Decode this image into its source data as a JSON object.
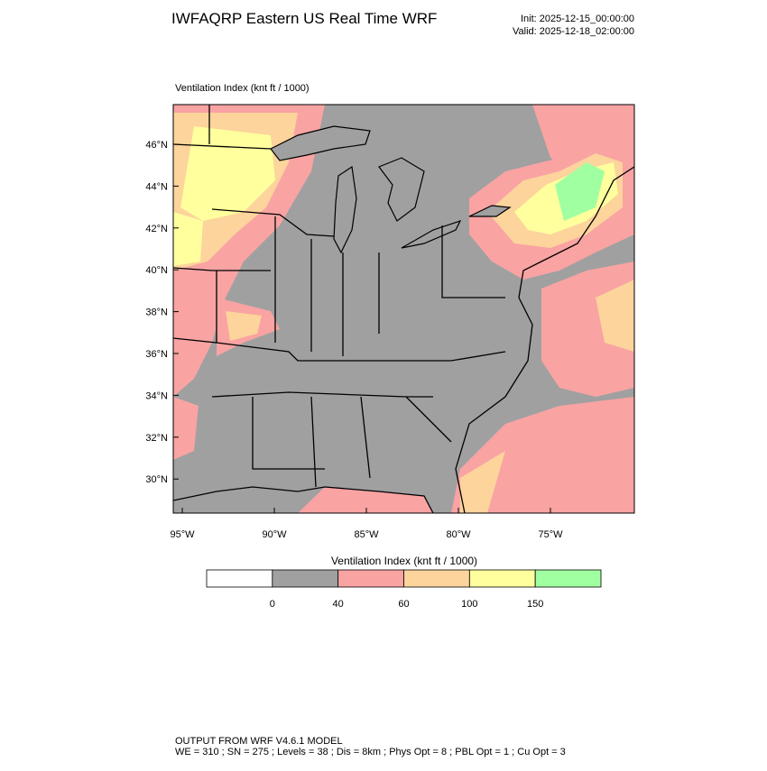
{
  "header": {
    "title": "IWFAQRP Eastern US Real Time WRF",
    "init": "Init: 2025-12-15_00:00:00",
    "valid": "Valid: 2025-12-18_02:00:00"
  },
  "map": {
    "subtitle": "Ventilation Index   (knt ft / 1000)",
    "lat_labels": [
      "46°N",
      "44°N",
      "42°N",
      "40°N",
      "38°N",
      "36°N",
      "34°N",
      "32°N",
      "30°N"
    ],
    "lon_labels": [
      "95°W",
      "90°W",
      "85°W",
      "80°W",
      "75°W"
    ]
  },
  "colorbar": {
    "title": "Ventilation Index  (knt ft / 1000)",
    "colors": [
      "#ffffff",
      "#a0a0a0",
      "#f9a3a3",
      "#fcd49c",
      "#ffff9e",
      "#a0ffa0"
    ],
    "labels": [
      "0",
      "40",
      "60",
      "100",
      "150"
    ]
  },
  "footer": {
    "line1": "OUTPUT FROM WRF V4.6.1 MODEL",
    "line2": "WE = 310 ; SN = 275 ; Levels = 38 ; Dis = 8km ; Phys Opt = 8 ; PBL Opt = 1 ; Cu Opt = 3"
  }
}
